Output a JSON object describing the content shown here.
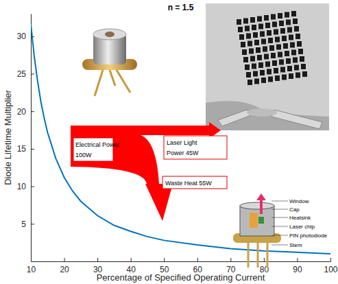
{
  "chart_data": {
    "type": "line",
    "title": "n = 1.5",
    "x_label": "Percentage of Specified Operating Current",
    "y_label": "Diode Lifetime Multiplier",
    "x": [
      10,
      11,
      12,
      13,
      14,
      15,
      17.5,
      20,
      22.5,
      25,
      30,
      35,
      40,
      45,
      50,
      60,
      70,
      80,
      90,
      100
    ],
    "values": [
      31.6,
      27.4,
      24.1,
      21.3,
      19.1,
      17.2,
      13.7,
      11.2,
      9.4,
      8.0,
      6.1,
      4.8,
      4.0,
      3.3,
      2.8,
      2.2,
      1.7,
      1.4,
      1.2,
      1.0
    ],
    "color": "#0072bd",
    "xlim": [
      10,
      100
    ],
    "ylim": [
      0,
      33
    ],
    "xticks": [
      10,
      20,
      30,
      40,
      50,
      60,
      70,
      80,
      90,
      100
    ],
    "yticks": [
      5,
      10,
      15,
      20,
      25,
      30
    ],
    "grid": false,
    "annotations": [
      "Electrical Power",
      "100W",
      "Laser Light",
      "Power 45W",
      "Waste Heat 55W",
      "Window",
      "Cap",
      "Heatsink",
      "Laser chip",
      "PIN photodiode",
      "Stem"
    ]
  }
}
